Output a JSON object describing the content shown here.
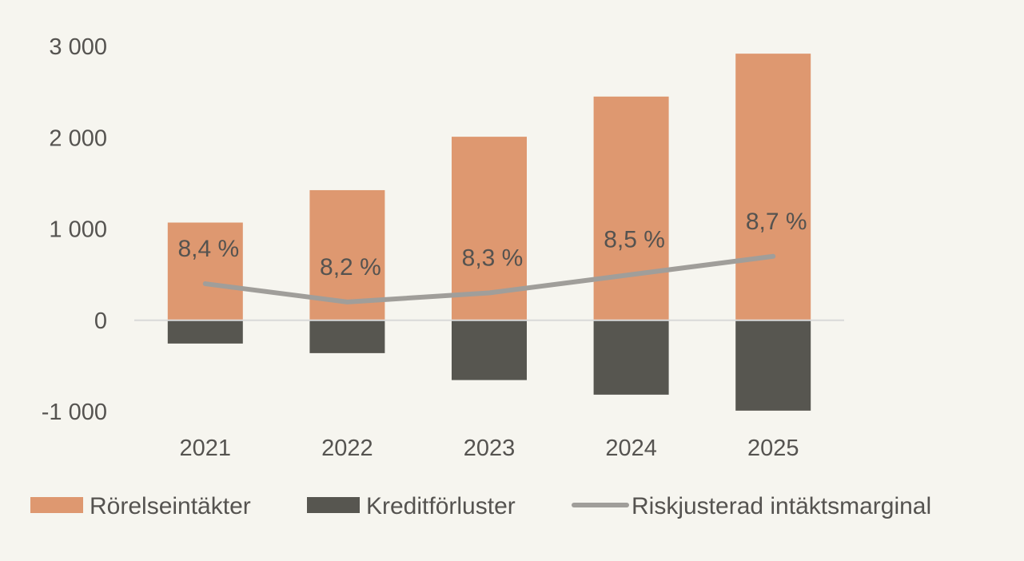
{
  "chart_data": {
    "type": "bar",
    "categories": [
      "2021",
      "2022",
      "2023",
      "2024",
      "2025"
    ],
    "series": [
      {
        "name": "Rörelseintäkter",
        "type": "bar",
        "color": "#de9870",
        "values": [
          1070,
          1425,
          2010,
          2450,
          2920
        ]
      },
      {
        "name": "Kreditförluster",
        "type": "bar",
        "color": "#575650",
        "values": [
          -255,
          -360,
          -655,
          -815,
          -990
        ]
      },
      {
        "name": "Riskjusterad intäktsmarginal",
        "type": "line",
        "axis": "secondary",
        "color": "#a09e9a",
        "values": [
          8.4,
          8.2,
          8.3,
          8.5,
          8.7
        ],
        "labels": [
          "8,4 %",
          "8,2 %",
          "8,3 %",
          "8,5 %",
          "8,7 %"
        ]
      }
    ],
    "y_ticks": [
      3000,
      2000,
      1000,
      0,
      -1000
    ],
    "y_tick_labels": [
      "3 000",
      "2 000",
      "1 000",
      "0",
      "-1 000"
    ],
    "ylim": [
      -1000,
      3000
    ],
    "y2lim": [
      7.0,
      11.0
    ],
    "grid": false,
    "legend_position": "bottom",
    "title": "",
    "xlabel": "",
    "ylabel": ""
  }
}
